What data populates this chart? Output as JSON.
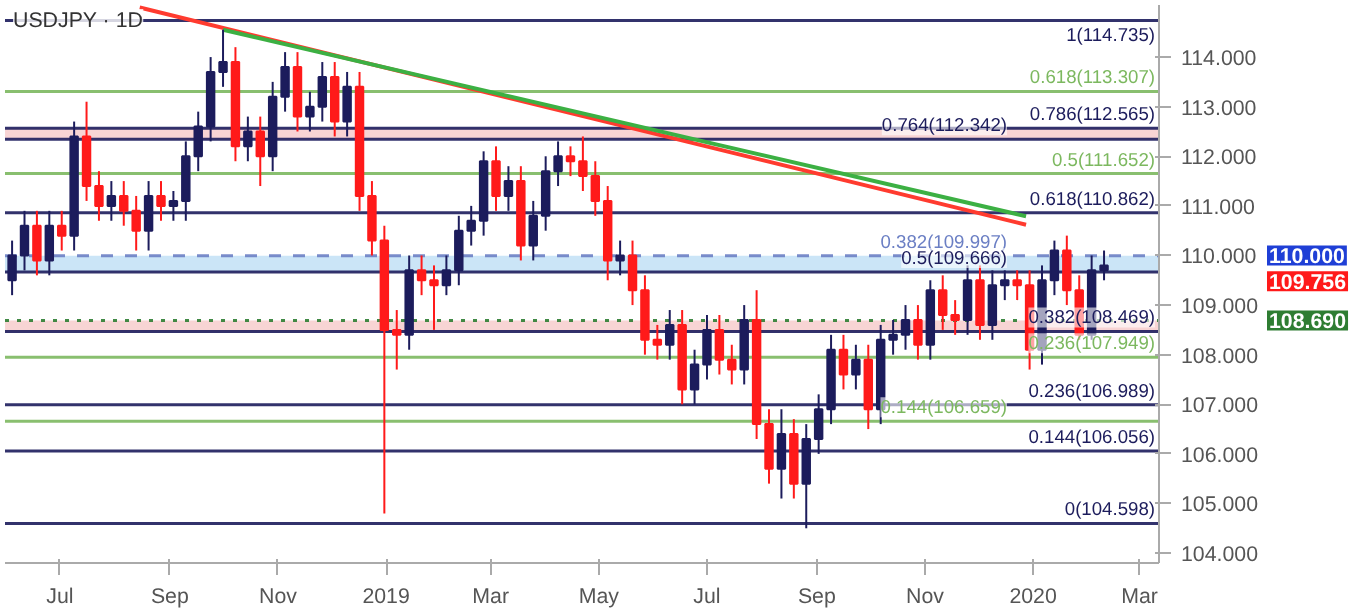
{
  "chart_data": {
    "type": "candlestick",
    "title": "USDJPY · 1D",
    "colors": [
      "#1c1c5c",
      "#1c1c5c",
      "#ff1a1a",
      "#1c1c5c",
      "#ff1a1a",
      "#1c1c5c",
      "#ff1a1a",
      "#ff1a1a",
      "#1c1c5c",
      "#ff1a1a",
      "#ff1a1a",
      "#1c1c5c",
      "#ff1a1a",
      "#1c1c5c",
      "#1c1c5c",
      "#1c1c5c",
      "#1c1c5c",
      "#1c1c5c",
      "#ff1a1a",
      "#1c1c5c",
      "#ff1a1a",
      "#1c1c5c",
      "#1c1c5c",
      "#ff1a1a",
      "#1c1c5c",
      "#1c1c5c",
      "#ff1a1a",
      "#1c1c5c",
      "#ff1a1a",
      "#ff1a1a",
      "#ff1a1a",
      "#ff1a1a",
      "#1c1c5c",
      "#ff1a1a",
      "#ff1a1a",
      "#1c1c5c",
      "#1c1c5c",
      "#1c1c5c",
      "#1c1c5c",
      "#ff1a1a",
      "#1c1c5c",
      "#ff1a1a",
      "#1c1c5c",
      "#1c1c5c",
      "#1c1c5c",
      "#ff1a1a",
      "#ff1a1a",
      "#ff1a1a",
      "#ff1a1a",
      "#1c1c5c",
      "#ff1a1a",
      "#ff1a1a",
      "#ff1a1a",
      "#1c1c5c",
      "#ff1a1a",
      "#1c1c5c",
      "#1c1c5c",
      "#ff1a1a",
      "#ff1a1a",
      "#1c1c5c",
      "#ff1a1a",
      "#ff1a1a",
      "#1c1c5c",
      "#ff1a1a",
      "#1c1c5c",
      "#1c1c5c",
      "#1c1c5c",
      "#ff1a1a",
      "#1c1c5c",
      "#ff1a1a",
      "#1c1c5c",
      "#1c1c5c",
      "#1c1c5c",
      "#ff1a1a",
      "#1c1c5c",
      "#ff1a1a",
      "#ff1a1a",
      "#1c1c5c",
      "#ff1a1a",
      "#1c1c5c",
      "#1c1c5c",
      "#ff1a1a",
      "#ff1a1a",
      "#1c1c5c",
      "#1c1c5c",
      "#ff1a1a",
      "#ff1a1a",
      "#1c1c5c",
      "#1c1c5c"
    ],
    "x": [
      "2018-06-04",
      "2018-06-11",
      "2018-06-18",
      "2018-06-25",
      "2018-07-02",
      "2018-07-09",
      "2018-07-16",
      "2018-07-23",
      "2018-07-30",
      "2018-08-06",
      "2018-08-13",
      "2018-08-20",
      "2018-08-27",
      "2018-09-03",
      "2018-09-10",
      "2018-09-17",
      "2018-09-24",
      "2018-10-01",
      "2018-10-08",
      "2018-10-15",
      "2018-10-22",
      "2018-10-29",
      "2018-11-05",
      "2018-11-12",
      "2018-11-19",
      "2018-11-26",
      "2018-12-03",
      "2018-12-10",
      "2018-12-17",
      "2018-12-24",
      "2018-12-31",
      "2019-01-07",
      "2019-01-14",
      "2019-01-21",
      "2019-01-28",
      "2019-02-04",
      "2019-02-11",
      "2019-02-18",
      "2019-02-25",
      "2019-03-04",
      "2019-03-11",
      "2019-03-18",
      "2019-03-25",
      "2019-04-01",
      "2019-04-08",
      "2019-04-15",
      "2019-04-22",
      "2019-04-29",
      "2019-05-06",
      "2019-05-13",
      "2019-05-20",
      "2019-05-27",
      "2019-06-03",
      "2019-06-10",
      "2019-06-17",
      "2019-06-24",
      "2019-07-01",
      "2019-07-08",
      "2019-07-15",
      "2019-07-22",
      "2019-07-29",
      "2019-08-05",
      "2019-08-12",
      "2019-08-19",
      "2019-08-26",
      "2019-09-02",
      "2019-09-09",
      "2019-09-16",
      "2019-09-23",
      "2019-09-30",
      "2019-10-07",
      "2019-10-14",
      "2019-10-21",
      "2019-10-28",
      "2019-11-04",
      "2019-11-11",
      "2019-11-18",
      "2019-11-25",
      "2019-12-02",
      "2019-12-09",
      "2019-12-16",
      "2019-12-23",
      "2019-12-30",
      "2020-01-06",
      "2020-01-13",
      "2020-01-20",
      "2020-01-27",
      "2020-02-03",
      "2020-02-10"
    ],
    "ohlc": [
      [
        109.5,
        110.3,
        109.2,
        110.0
      ],
      [
        110.0,
        110.9,
        109.7,
        110.6
      ],
      [
        110.6,
        110.9,
        109.6,
        109.9
      ],
      [
        109.9,
        110.9,
        109.6,
        110.6
      ],
      [
        110.6,
        110.9,
        110.1,
        110.4
      ],
      [
        110.4,
        112.7,
        110.1,
        112.4
      ],
      [
        112.4,
        113.1,
        111.1,
        111.4
      ],
      [
        111.4,
        111.7,
        110.7,
        111.0
      ],
      [
        111.0,
        111.5,
        110.7,
        111.2
      ],
      [
        111.2,
        111.5,
        110.6,
        110.9
      ],
      [
        110.9,
        111.2,
        110.1,
        110.5
      ],
      [
        110.5,
        111.5,
        110.1,
        111.2
      ],
      [
        111.2,
        111.5,
        110.7,
        111.0
      ],
      [
        111.0,
        111.3,
        110.7,
        111.1
      ],
      [
        111.1,
        112.3,
        110.7,
        112.0
      ],
      [
        112.0,
        112.9,
        111.7,
        112.6
      ],
      [
        112.6,
        114.0,
        112.3,
        113.7
      ],
      [
        113.7,
        114.55,
        113.4,
        113.9
      ],
      [
        113.9,
        114.2,
        111.9,
        112.2
      ],
      [
        112.2,
        112.8,
        111.9,
        112.5
      ],
      [
        112.5,
        112.8,
        111.4,
        112.0
      ],
      [
        112.0,
        113.5,
        111.7,
        113.2
      ],
      [
        113.2,
        114.1,
        112.9,
        113.8
      ],
      [
        113.8,
        114.1,
        112.5,
        112.8
      ],
      [
        112.8,
        113.3,
        112.5,
        113.0
      ],
      [
        113.0,
        113.9,
        112.7,
        113.6
      ],
      [
        113.6,
        113.9,
        112.4,
        112.7
      ],
      [
        112.7,
        113.7,
        112.4,
        113.4
      ],
      [
        113.4,
        113.7,
        110.9,
        111.2
      ],
      [
        111.2,
        111.5,
        110.0,
        110.3
      ],
      [
        110.3,
        110.6,
        104.8,
        108.5
      ],
      [
        108.5,
        108.9,
        107.7,
        108.4
      ],
      [
        108.4,
        110.0,
        108.1,
        109.7
      ],
      [
        109.7,
        110.0,
        109.2,
        109.5
      ],
      [
        109.5,
        109.8,
        108.5,
        109.4
      ],
      [
        109.4,
        110.0,
        109.2,
        109.7
      ],
      [
        109.7,
        110.8,
        109.4,
        110.5
      ],
      [
        110.5,
        111.0,
        110.2,
        110.7
      ],
      [
        110.7,
        112.1,
        110.4,
        111.9
      ],
      [
        111.9,
        112.2,
        110.9,
        111.2
      ],
      [
        111.2,
        111.8,
        110.9,
        111.5
      ],
      [
        111.5,
        111.8,
        109.9,
        110.2
      ],
      [
        110.2,
        111.1,
        109.9,
        110.8
      ],
      [
        110.8,
        112.0,
        110.5,
        111.7
      ],
      [
        111.7,
        112.3,
        111.4,
        112.0
      ],
      [
        112.0,
        112.2,
        111.6,
        111.9
      ],
      [
        111.9,
        112.4,
        111.3,
        111.6
      ],
      [
        111.6,
        111.9,
        110.8,
        111.1
      ],
      [
        111.1,
        111.4,
        109.5,
        109.9
      ],
      [
        109.9,
        110.3,
        109.6,
        110.0
      ],
      [
        110.0,
        110.3,
        109.0,
        109.3
      ],
      [
        109.3,
        109.6,
        108.0,
        108.3
      ],
      [
        108.3,
        108.6,
        107.9,
        108.2
      ],
      [
        108.2,
        108.9,
        107.9,
        108.6
      ],
      [
        108.6,
        108.9,
        107.0,
        107.3
      ],
      [
        107.3,
        108.1,
        107.0,
        107.8
      ],
      [
        107.8,
        108.8,
        107.5,
        108.5
      ],
      [
        108.5,
        108.8,
        107.6,
        107.9
      ],
      [
        107.9,
        108.2,
        107.4,
        107.7
      ],
      [
        107.7,
        109.0,
        107.4,
        108.7
      ],
      [
        108.7,
        109.3,
        106.3,
        106.6
      ],
      [
        106.6,
        106.9,
        105.4,
        105.7
      ],
      [
        105.7,
        106.9,
        105.1,
        106.4
      ],
      [
        106.4,
        106.7,
        105.1,
        105.4
      ],
      [
        105.4,
        106.6,
        104.5,
        106.3
      ],
      [
        106.3,
        107.2,
        106.0,
        106.9
      ],
      [
        106.9,
        108.4,
        106.6,
        108.1
      ],
      [
        108.1,
        108.4,
        107.3,
        107.6
      ],
      [
        107.6,
        108.2,
        107.3,
        107.9
      ],
      [
        107.9,
        108.2,
        106.5,
        106.9
      ],
      [
        106.9,
        108.6,
        106.6,
        108.3
      ],
      [
        108.3,
        108.7,
        108.0,
        108.4
      ],
      [
        108.4,
        109.0,
        108.1,
        108.7
      ],
      [
        108.7,
        109.0,
        107.9,
        108.2
      ],
      [
        108.2,
        109.5,
        107.9,
        109.3
      ],
      [
        109.3,
        109.6,
        108.5,
        108.8
      ],
      [
        108.8,
        109.1,
        108.4,
        108.7
      ],
      [
        108.7,
        109.8,
        108.4,
        109.5
      ],
      [
        109.5,
        109.8,
        108.3,
        108.6
      ],
      [
        108.6,
        109.7,
        108.3,
        109.4
      ],
      [
        109.4,
        109.7,
        109.1,
        109.5
      ],
      [
        109.5,
        109.7,
        109.1,
        109.4
      ],
      [
        109.4,
        109.7,
        107.7,
        108.1
      ],
      [
        108.1,
        109.8,
        107.8,
        109.5
      ],
      [
        109.5,
        110.3,
        109.2,
        110.1
      ],
      [
        110.1,
        110.4,
        109.0,
        109.3
      ],
      [
        109.3,
        109.6,
        108.3,
        108.4
      ],
      [
        108.4,
        110.0,
        108.3,
        109.7
      ],
      [
        109.7,
        110.1,
        109.5,
        109.8
      ]
    ],
    "series": [
      {
        "type": "line",
        "color": "#ff3b2f",
        "x": [
          "2018-08-15",
          "2019-12-28"
        ],
        "values": [
          115.0,
          110.62
        ]
      },
      {
        "type": "line",
        "color": "#3cb043",
        "x": [
          "2018-10-01",
          "2019-12-28"
        ],
        "values": [
          114.55,
          110.79
        ]
      }
    ],
    "xlim": [
      "2018-05-31",
      "2020-03-12"
    ],
    "xticks": [
      {
        "value": "2018-07-01",
        "label": "Jul"
      },
      {
        "value": "2018-09-01",
        "label": "Sep"
      },
      {
        "value": "2018-11-01",
        "label": "Nov"
      },
      {
        "value": "2019-01-01",
        "label": "2019"
      },
      {
        "value": "2019-03-01",
        "label": "Mar"
      },
      {
        "value": "2019-05-01",
        "label": "May"
      },
      {
        "value": "2019-07-01",
        "label": "Jul"
      },
      {
        "value": "2019-09-01",
        "label": "Sep"
      },
      {
        "value": "2019-11-01",
        "label": "Nov"
      },
      {
        "value": "2020-01-01",
        "label": "2020"
      },
      {
        "value": "2020-03-01",
        "label": "Mar"
      }
    ],
    "ylim": [
      103.8,
      115.05
    ],
    "yticks": [
      {
        "value": 104,
        "label": "104.000"
      },
      {
        "value": 105,
        "label": "105.000"
      },
      {
        "value": 106,
        "label": "106.000"
      },
      {
        "value": 107,
        "label": "107.000"
      },
      {
        "value": 108,
        "label": "108.000"
      },
      {
        "value": 109,
        "label": "109.000"
      },
      {
        "value": 110,
        "label": "110.000"
      },
      {
        "value": 111,
        "label": "111.000"
      },
      {
        "value": 112,
        "label": "112.000"
      },
      {
        "value": 113,
        "label": "113.000"
      },
      {
        "value": 114,
        "label": "114.000"
      }
    ],
    "bands": [
      {
        "axis": "y",
        "from": 109.666,
        "to": 109.997,
        "color": "#a9d3f2"
      },
      {
        "axis": "y",
        "from": 112.342,
        "to": 112.565,
        "color": "#f4b8b8"
      },
      {
        "axis": "y",
        "from": 108.469,
        "to": 108.69,
        "color": "#f4b8b8"
      }
    ],
    "ref_lines": [
      {
        "axis": "y",
        "value": 114.735,
        "label": "1(114.735)",
        "color": "#1c1c5c"
      },
      {
        "axis": "y",
        "value": 113.307,
        "label": "0.618(113.307)",
        "color": "#7cb85f"
      },
      {
        "axis": "y",
        "value": 112.565,
        "label": "0.786(112.565)",
        "color": "#1c1c5c"
      },
      {
        "axis": "y",
        "value": 112.342,
        "label": "0.764(112.342)",
        "color": "#1c1c5c"
      },
      {
        "axis": "y",
        "value": 111.652,
        "label": "0.5(111.652)",
        "color": "#7cb85f"
      },
      {
        "axis": "y",
        "value": 110.862,
        "label": "0.618(110.862)",
        "color": "#1c1c5c"
      },
      {
        "axis": "y",
        "value": 109.997,
        "label": "0.382(109.997)",
        "color": "#6b7fc4",
        "line_style": "dashed"
      },
      {
        "axis": "y",
        "value": 109.666,
        "label": "0.5(109.666)",
        "color": "#1c1c5c"
      },
      {
        "axis": "y",
        "value": 108.469,
        "label": "0.382(108.469)",
        "color": "#1c1c5c"
      },
      {
        "axis": "y",
        "value": 107.949,
        "label": "0.236(107.949)",
        "color": "#7cb85f"
      },
      {
        "axis": "y",
        "value": 106.989,
        "label": "0.236(106.989)",
        "color": "#1c1c5c"
      },
      {
        "axis": "y",
        "value": 106.659,
        "label": "0.144(106.659)",
        "color": "#7cb85f"
      },
      {
        "axis": "y",
        "value": 106.056,
        "label": "0.144(106.056)",
        "color": "#1c1c5c"
      },
      {
        "axis": "y",
        "value": 104.598,
        "label": "0(104.598)",
        "color": "#1c1c5c"
      },
      {
        "axis": "y",
        "value": 108.69,
        "color": "#2e7d32",
        "line_style": "dotted"
      }
    ],
    "annotations": [
      "110.000",
      "109.756",
      "108.690"
    ]
  }
}
